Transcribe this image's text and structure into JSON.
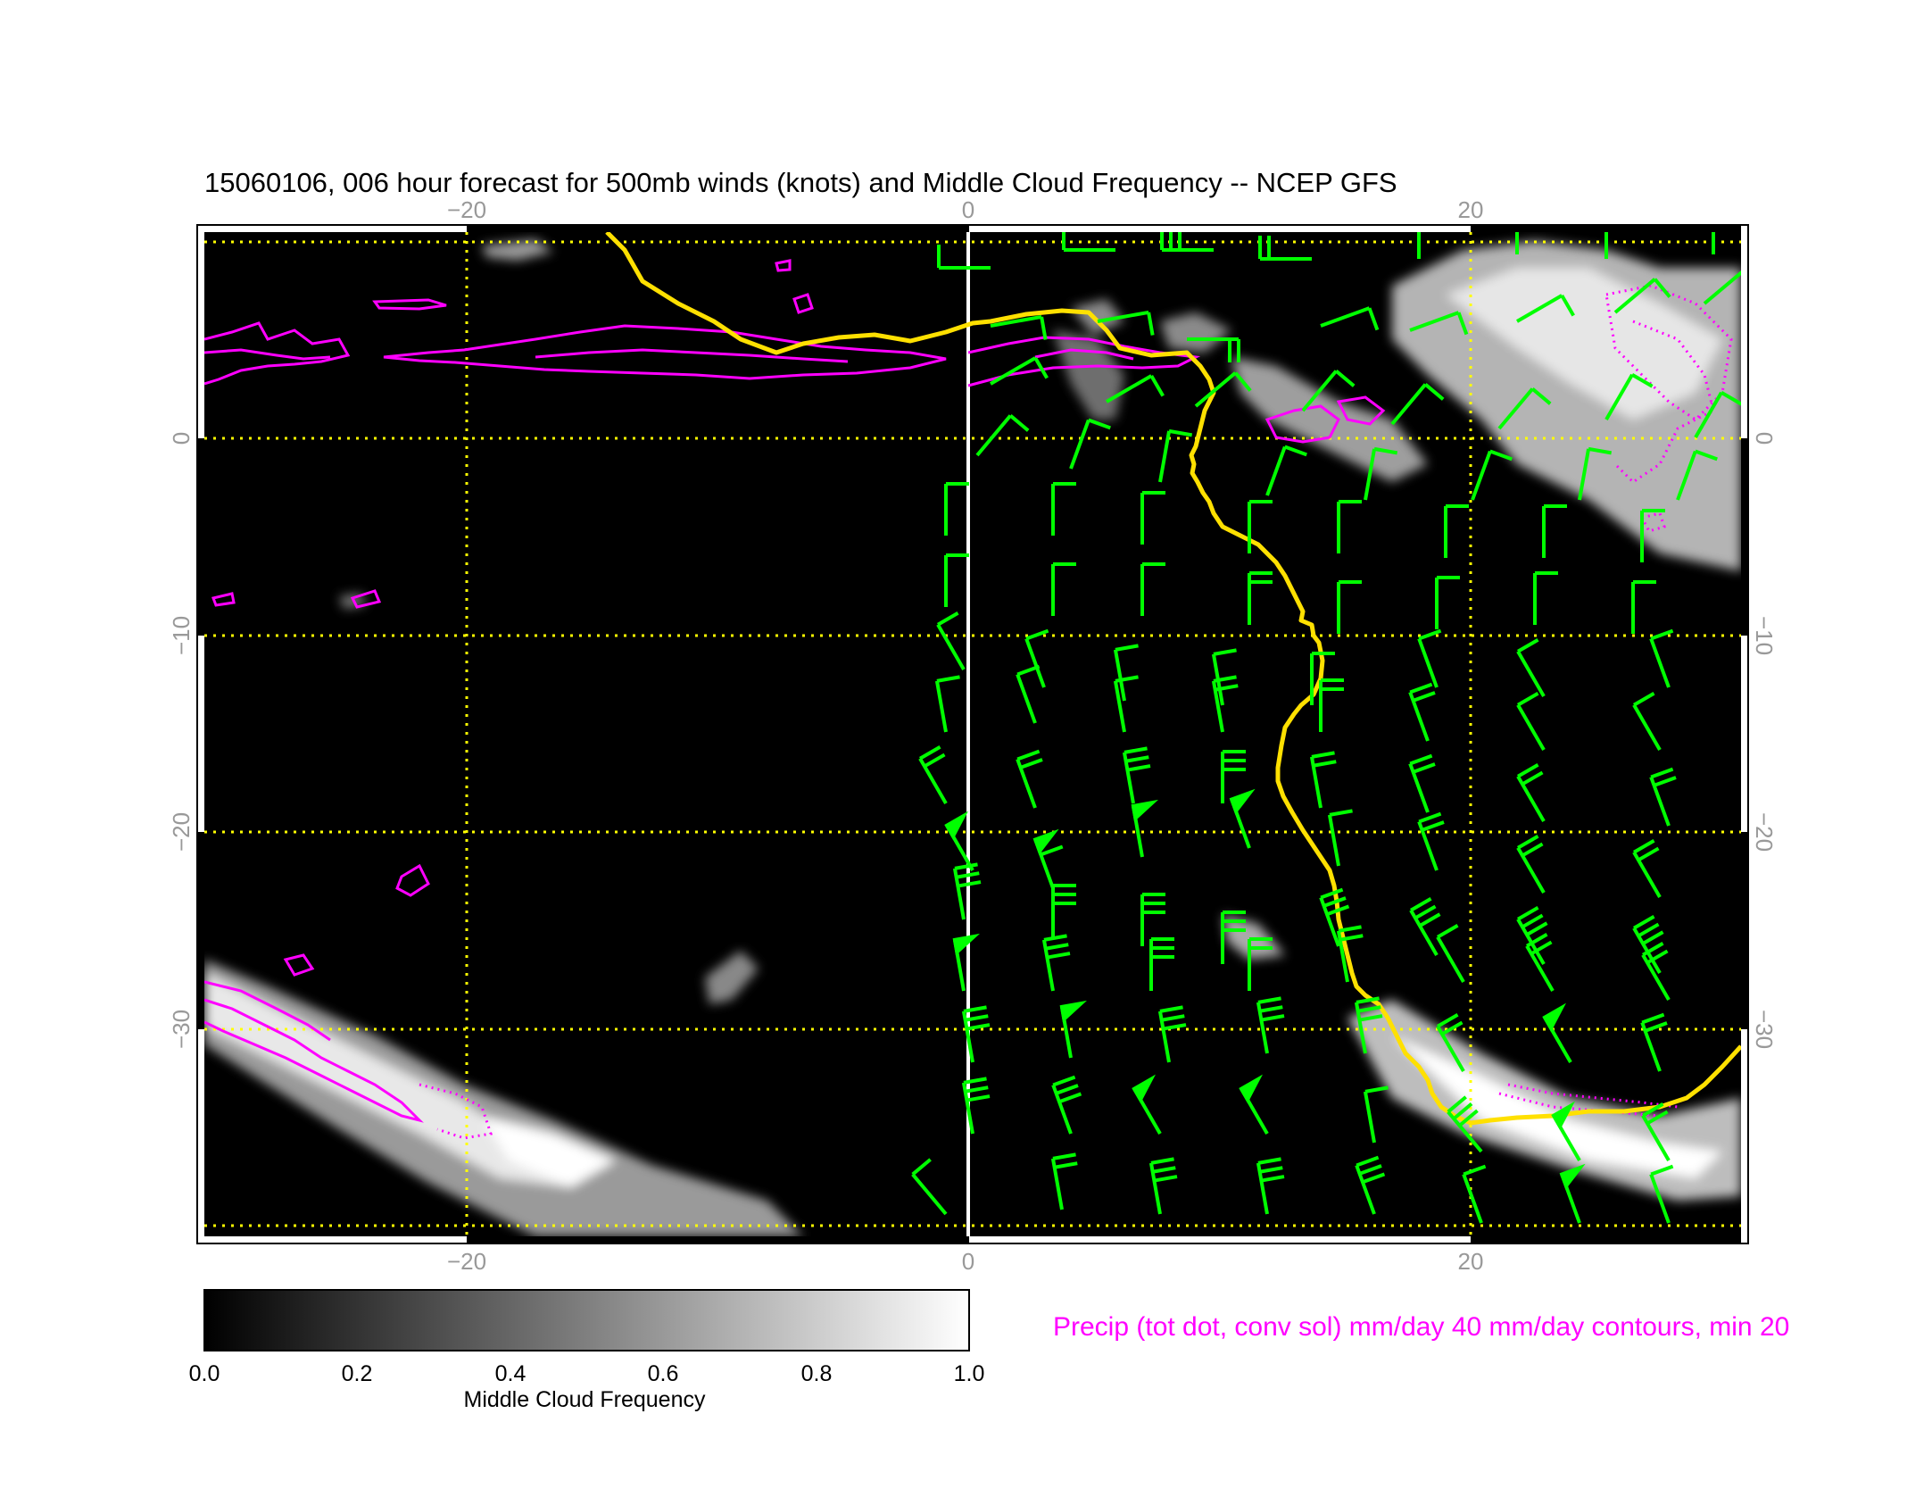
{
  "title": "15060106, 006 hour forecast for 500mb winds (knots) and Middle Cloud Frequency -- NCEP GFS",
  "colors": {
    "background": "#ffffff",
    "map_background": "#000000",
    "grid": "#ffff00",
    "wind_barbs": "#00ff00",
    "precip_contours": "#ff00ff",
    "coastline": "#ffe000",
    "meridian": "#ffffff"
  },
  "map": {
    "lon_range": [
      -30.5,
      30.5
    ],
    "lat_range": [
      -40,
      10
    ],
    "lon_ticks": [
      "−20",
      "0",
      "20"
    ],
    "lat_ticks": [
      "0",
      "−10",
      "−20",
      "−30"
    ]
  },
  "colorbar": {
    "label": "Middle Cloud Frequency",
    "ticks": [
      "0.0",
      "0.2",
      "0.4",
      "0.6",
      "0.8",
      "1.0"
    ],
    "range": [
      0.0,
      1.0
    ]
  },
  "precip_note": "Precip (tot dot, conv sol) mm/day 40 mm/day contours, min 20"
}
